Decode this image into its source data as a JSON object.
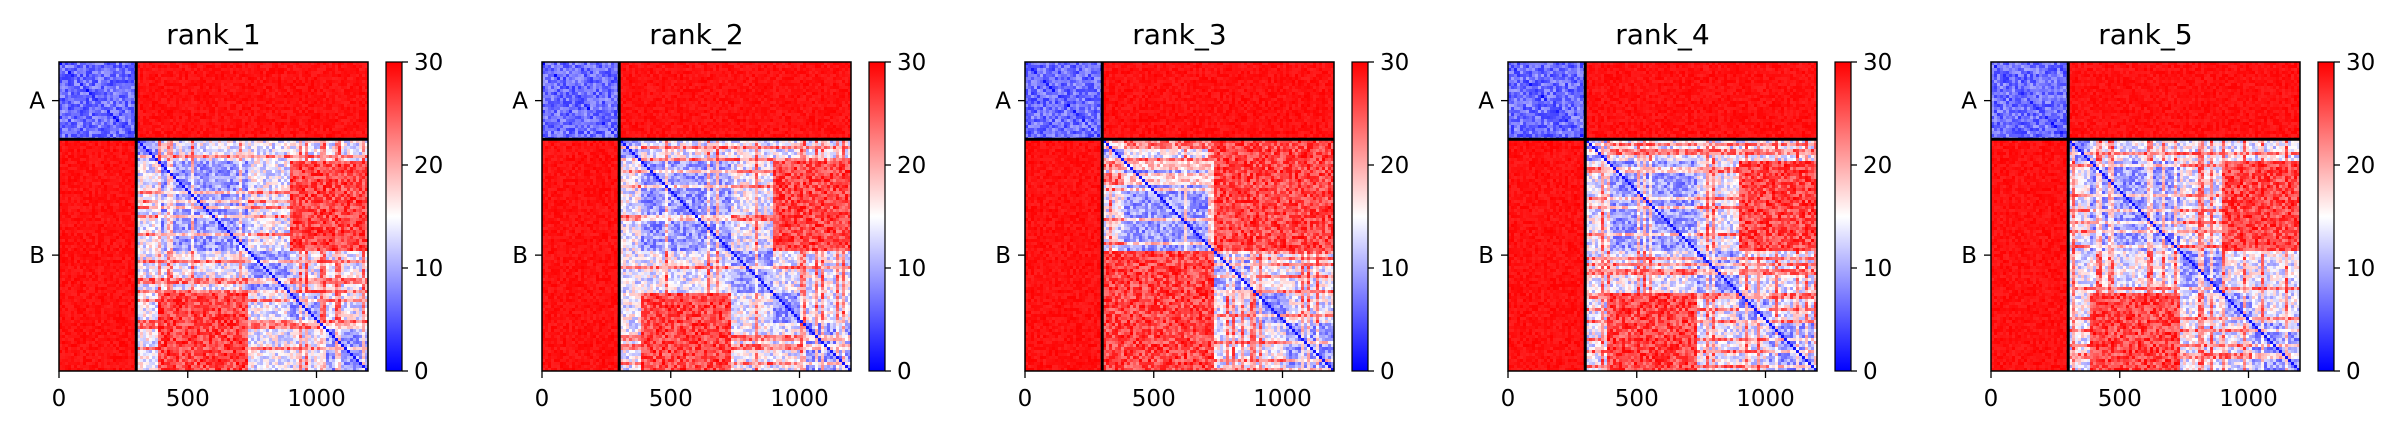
{
  "chart_data": [
    {
      "type": "heatmap",
      "title": "rank_1",
      "xlim": [
        0,
        1200
      ],
      "x_ticks": [
        0,
        500,
        1000
      ],
      "y_ticks": [
        {
          "label": "A",
          "range": [
            0,
            300
          ]
        },
        {
          "label": "B",
          "range": [
            300,
            1200
          ]
        }
      ],
      "chain_boundary": 300,
      "residues": 1200,
      "colormap": "bwr",
      "colorbar": {
        "min": 0,
        "max": 30,
        "ticks": [
          0,
          10,
          20,
          30
        ]
      },
      "diagonal_blocks": [
        [
          0,
          300
        ],
        [
          300,
          380
        ],
        [
          380,
          730
        ],
        [
          730,
          900
        ],
        [
          900,
          1010
        ],
        [
          1010,
          1200
        ]
      ],
      "low_error_regions": [
        [
          [
            300,
            380
          ],
          [
            300,
            1200
          ]
        ],
        [
          [
            380,
            730
          ],
          [
            380,
            900
          ]
        ],
        [
          [
            730,
            900
          ],
          [
            380,
            1200
          ]
        ],
        [
          [
            900,
            1200
          ],
          [
            730,
            1200
          ]
        ]
      ],
      "cross_chain_error": 30
    },
    {
      "type": "heatmap",
      "title": "rank_2",
      "xlim": [
        0,
        1200
      ],
      "x_ticks": [
        0,
        500,
        1000
      ],
      "y_ticks": [
        {
          "label": "A",
          "range": [
            0,
            300
          ]
        },
        {
          "label": "B",
          "range": [
            300,
            1200
          ]
        }
      ],
      "chain_boundary": 300,
      "residues": 1200,
      "colormap": "bwr",
      "colorbar": {
        "min": 0,
        "max": 30,
        "ticks": [
          0,
          10,
          20,
          30
        ]
      },
      "diagonal_blocks": [
        [
          0,
          300
        ],
        [
          300,
          380
        ],
        [
          380,
          730
        ],
        [
          730,
          900
        ],
        [
          900,
          1010
        ],
        [
          1010,
          1200
        ]
      ],
      "low_error_regions": [
        [
          [
            300,
            380
          ],
          [
            300,
            1200
          ]
        ],
        [
          [
            380,
            730
          ],
          [
            380,
            900
          ]
        ],
        [
          [
            730,
            900
          ],
          [
            380,
            1200
          ]
        ],
        [
          [
            900,
            1200
          ],
          [
            730,
            1200
          ]
        ]
      ],
      "cross_chain_error": 30
    },
    {
      "type": "heatmap",
      "title": "rank_3",
      "xlim": [
        0,
        1200
      ],
      "x_ticks": [
        0,
        500,
        1000
      ],
      "y_ticks": [
        {
          "label": "A",
          "range": [
            0,
            300
          ]
        },
        {
          "label": "B",
          "range": [
            300,
            1200
          ]
        }
      ],
      "chain_boundary": 300,
      "residues": 1200,
      "colormap": "bwr",
      "colorbar": {
        "min": 0,
        "max": 30,
        "ticks": [
          0,
          10,
          20,
          30
        ]
      },
      "diagonal_blocks": [
        [
          0,
          300
        ],
        [
          300,
          380
        ],
        [
          380,
          730
        ],
        [
          730,
          900
        ],
        [
          900,
          1010
        ],
        [
          1010,
          1200
        ]
      ],
      "low_error_regions": [
        [
          [
            300,
            380
          ],
          [
            300,
            730
          ]
        ],
        [
          [
            380,
            730
          ],
          [
            380,
            730
          ]
        ],
        [
          [
            730,
            900
          ],
          [
            730,
            1200
          ]
        ],
        [
          [
            900,
            1200
          ],
          [
            730,
            1200
          ]
        ]
      ],
      "cross_chain_error": 30
    },
    {
      "type": "heatmap",
      "title": "rank_4",
      "xlim": [
        0,
        1200
      ],
      "x_ticks": [
        0,
        500,
        1000
      ],
      "y_ticks": [
        {
          "label": "A",
          "range": [
            0,
            300
          ]
        },
        {
          "label": "B",
          "range": [
            300,
            1200
          ]
        }
      ],
      "chain_boundary": 300,
      "residues": 1200,
      "colormap": "bwr",
      "colorbar": {
        "min": 0,
        "max": 30,
        "ticks": [
          0,
          10,
          20,
          30
        ]
      },
      "diagonal_blocks": [
        [
          0,
          300
        ],
        [
          300,
          380
        ],
        [
          380,
          730
        ],
        [
          730,
          900
        ],
        [
          900,
          1010
        ],
        [
          1010,
          1200
        ]
      ],
      "low_error_regions": [
        [
          [
            300,
            380
          ],
          [
            300,
            1200
          ]
        ],
        [
          [
            380,
            730
          ],
          [
            380,
            900
          ]
        ],
        [
          [
            730,
            900
          ],
          [
            380,
            1200
          ]
        ],
        [
          [
            900,
            1200
          ],
          [
            730,
            1200
          ]
        ]
      ],
      "cross_chain_error": 30
    },
    {
      "type": "heatmap",
      "title": "rank_5",
      "xlim": [
        0,
        1200
      ],
      "x_ticks": [
        0,
        500,
        1000
      ],
      "y_ticks": [
        {
          "label": "A",
          "range": [
            0,
            300
          ]
        },
        {
          "label": "B",
          "range": [
            300,
            1200
          ]
        }
      ],
      "chain_boundary": 300,
      "residues": 1200,
      "colormap": "bwr",
      "colorbar": {
        "min": 0,
        "max": 30,
        "ticks": [
          0,
          10,
          20,
          30
        ]
      },
      "diagonal_blocks": [
        [
          0,
          300
        ],
        [
          300,
          380
        ],
        [
          380,
          730
        ],
        [
          730,
          900
        ],
        [
          900,
          1010
        ],
        [
          1010,
          1200
        ]
      ],
      "low_error_regions": [
        [
          [
            300,
            380
          ],
          [
            300,
            1200
          ]
        ],
        [
          [
            380,
            730
          ],
          [
            380,
            900
          ]
        ],
        [
          [
            730,
            900
          ],
          [
            380,
            1200
          ]
        ],
        [
          [
            900,
            1200
          ],
          [
            730,
            1200
          ]
        ]
      ],
      "cross_chain_error": 30
    }
  ],
  "colors": {
    "low": "#0000ff",
    "mid": "#ffffff",
    "high": "#ff0000",
    "axis": "#000000"
  }
}
